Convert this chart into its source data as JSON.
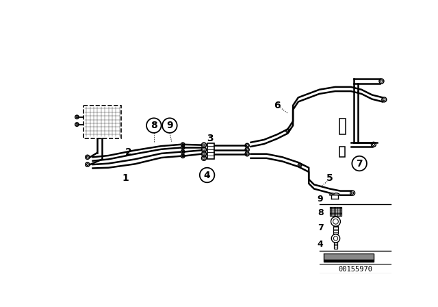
{
  "bg_color": "#ffffff",
  "line_color": "#000000",
  "diagram_id": "00155970",
  "fig_width": 6.4,
  "fig_height": 4.48,
  "dpi": 100,
  "lw": 1.4,
  "lw_pipe": 1.8
}
